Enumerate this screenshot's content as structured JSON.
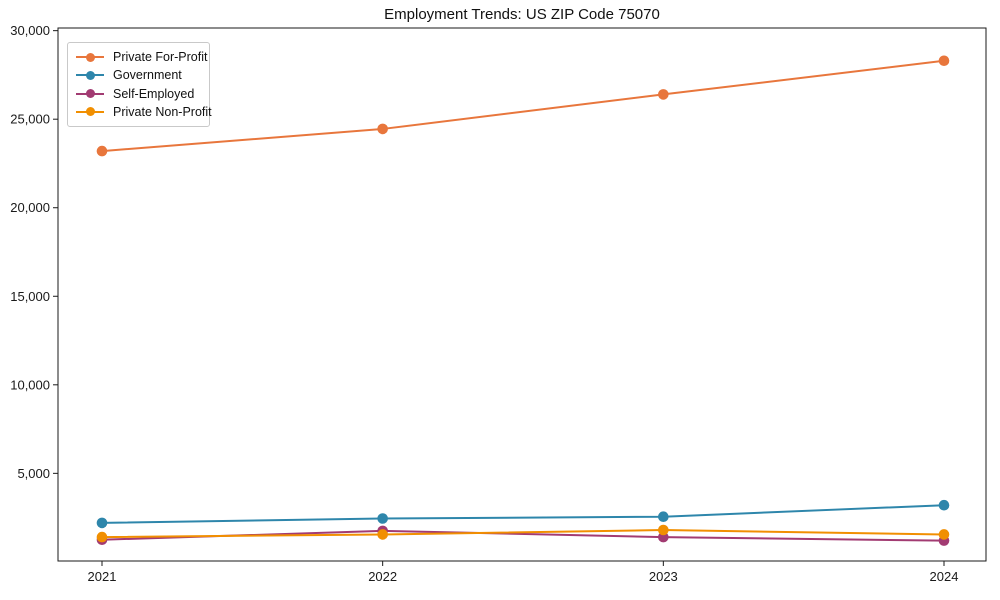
{
  "chart_data": {
    "type": "line",
    "title": "Employment Trends: US ZIP Code 75070",
    "x": [
      "2021",
      "2022",
      "2023",
      "2024"
    ],
    "series": [
      {
        "name": "Private For-Profit",
        "color": "#E8763C",
        "values": [
          23200,
          24450,
          26400,
          28300
        ]
      },
      {
        "name": "Government",
        "color": "#2E86AB",
        "values": [
          2200,
          2450,
          2550,
          3200
        ]
      },
      {
        "name": "Self-Employed",
        "color": "#A23B72",
        "values": [
          1250,
          1750,
          1400,
          1200
        ]
      },
      {
        "name": "Private Non-Profit",
        "color": "#F18F01",
        "values": [
          1400,
          1550,
          1800,
          1550
        ]
      }
    ],
    "xlabel": "",
    "ylabel": "",
    "ylim": [
      50,
      30150
    ],
    "yticks": [
      5000,
      10000,
      15000,
      20000,
      25000,
      30000
    ],
    "ytick_labels": [
      "5,000",
      "10,000",
      "15,000",
      "20,000",
      "25,000",
      "30,000"
    ],
    "xtick_labels": [
      "2021",
      "2022",
      "2023",
      "2024"
    ],
    "legend_position": "upper-left",
    "grid": false,
    "marker": "circle",
    "background_color": "#ffffff",
    "spine_color": "#1a1a1a"
  }
}
